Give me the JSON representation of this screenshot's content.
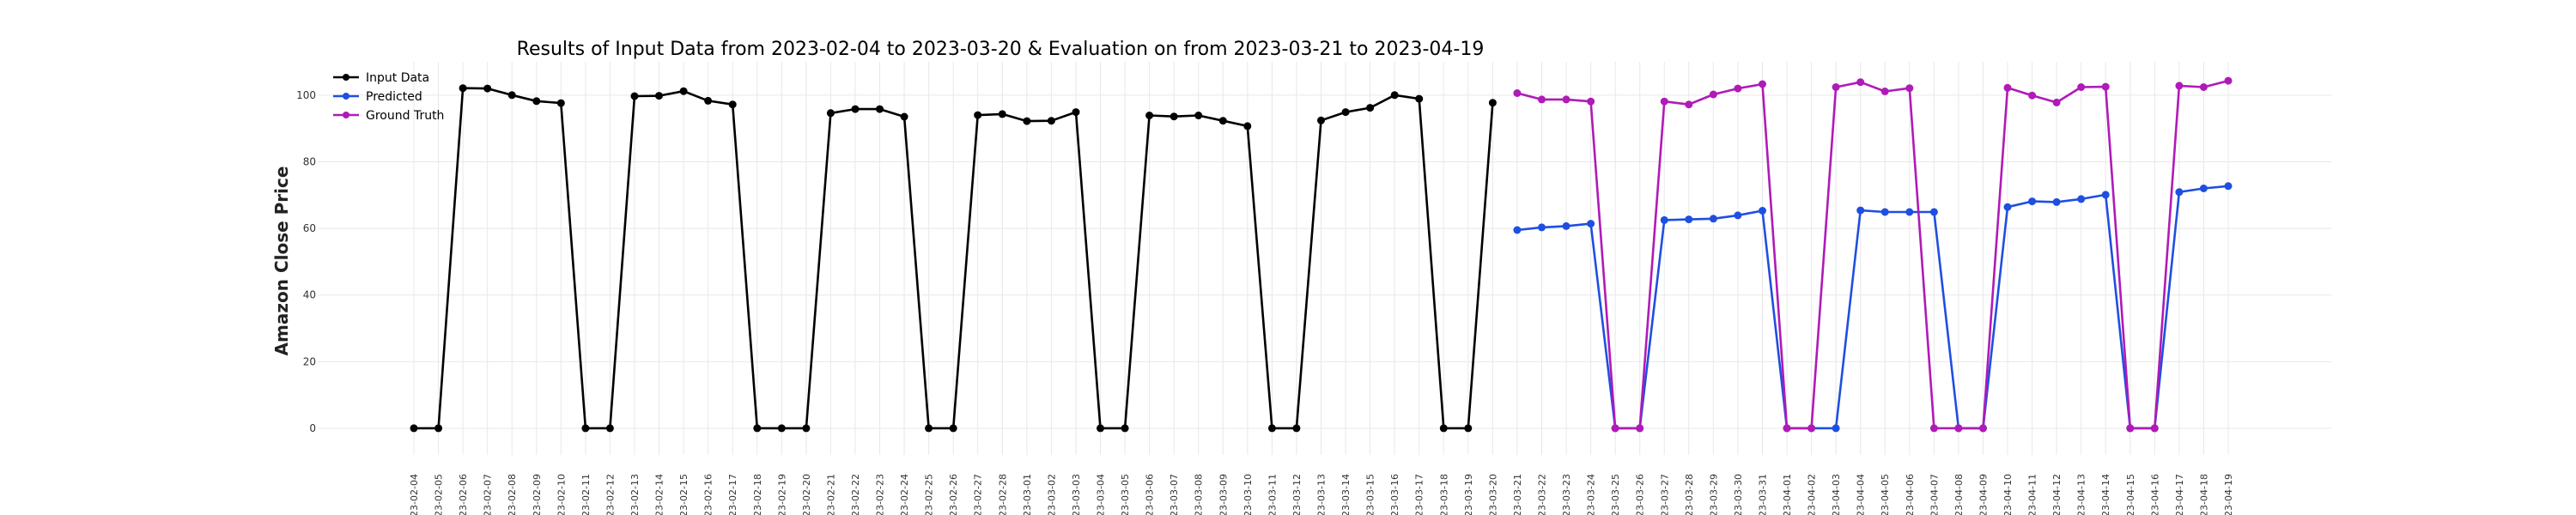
{
  "chart_data": {
    "type": "line",
    "title": "Results of Input Data from 2023-02-04 to 2023-03-20 & Evaluation on from 2023-03-21 to 2023-04-19",
    "xlabel": "",
    "ylabel": "Amazon Close Price",
    "ylim": [
      -8,
      110
    ],
    "yticks": [
      0,
      20,
      40,
      60,
      80,
      100
    ],
    "grid": true,
    "legend_position": "top-left",
    "x_dates": [
      "2023-02-04",
      "2023-02-05",
      "2023-02-06",
      "2023-02-07",
      "2023-02-08",
      "2023-02-09",
      "2023-02-10",
      "2023-02-11",
      "2023-02-12",
      "2023-02-13",
      "2023-02-14",
      "2023-02-15",
      "2023-02-16",
      "2023-02-17",
      "2023-02-18",
      "2023-02-19",
      "2023-02-20",
      "2023-02-21",
      "2023-02-22",
      "2023-02-23",
      "2023-02-24",
      "2023-02-25",
      "2023-02-26",
      "2023-02-27",
      "2023-02-28",
      "2023-03-01",
      "2023-03-02",
      "2023-03-03",
      "2023-03-04",
      "2023-03-05",
      "2023-03-06",
      "2023-03-07",
      "2023-03-08",
      "2023-03-09",
      "2023-03-10",
      "2023-03-11",
      "2023-03-12",
      "2023-03-13",
      "2023-03-14",
      "2023-03-15",
      "2023-03-16",
      "2023-03-17",
      "2023-03-18",
      "2023-03-19",
      "2023-03-20",
      "2023-03-21",
      "2023-03-22",
      "2023-03-23",
      "2023-03-24",
      "2023-03-25",
      "2023-03-26",
      "2023-03-27",
      "2023-03-28",
      "2023-03-29",
      "2023-03-30",
      "2023-03-31",
      "2023-04-01",
      "2023-04-02",
      "2023-04-03",
      "2023-04-04",
      "2023-04-05",
      "2023-04-06",
      "2023-04-07",
      "2023-04-08",
      "2023-04-09",
      "2023-04-10",
      "2023-04-11",
      "2023-04-12",
      "2023-04-13",
      "2023-04-14",
      "2023-04-15",
      "2023-04-16",
      "2023-04-17",
      "2023-04-18",
      "2023-04-19"
    ],
    "x_tick_labels": [
      "23-02-04",
      "23-02-05",
      "23-02-06",
      "23-02-07",
      "23-02-08",
      "23-02-09",
      "23-02-10",
      "23-02-11",
      "23-02-12",
      "23-02-13",
      "23-02-14",
      "23-02-15",
      "23-02-16",
      "23-02-17",
      "23-02-18",
      "23-02-19",
      "23-02-20",
      "23-02-21",
      "23-02-22",
      "23-02-23",
      "23-02-24",
      "23-02-25",
      "23-02-26",
      "23-02-27",
      "23-02-28",
      "23-03-01",
      "23-03-02",
      "23-03-03",
      "23-03-04",
      "23-03-05",
      "23-03-06",
      "23-03-07",
      "23-03-08",
      "23-03-09",
      "23-03-10",
      "23-03-11",
      "23-03-12",
      "23-03-13",
      "23-03-14",
      "23-03-15",
      "23-03-16",
      "23-03-17",
      "23-03-18",
      "23-03-19",
      "23-03-20",
      "23-03-21",
      "23-03-22",
      "23-03-23",
      "23-03-24",
      "23-03-25",
      "23-03-26",
      "23-03-27",
      "23-03-28",
      "23-03-29",
      "23-03-30",
      "23-03-31",
      "23-04-01",
      "23-04-02",
      "23-04-03",
      "23-04-04",
      "23-04-05",
      "23-04-06",
      "23-04-07",
      "23-04-08",
      "23-04-09",
      "23-04-10",
      "23-04-11",
      "23-04-12",
      "23-04-13",
      "23-04-14",
      "23-04-15",
      "23-04-16",
      "23-04-17",
      "23-04-18",
      "23-04-19"
    ],
    "series": [
      {
        "name": "Input Data",
        "color": "#000000",
        "x": [
          "2023-02-04",
          "2023-02-05",
          "2023-02-06",
          "2023-02-07",
          "2023-02-08",
          "2023-02-09",
          "2023-02-10",
          "2023-02-11",
          "2023-02-12",
          "2023-02-13",
          "2023-02-14",
          "2023-02-15",
          "2023-02-16",
          "2023-02-17",
          "2023-02-18",
          "2023-02-19",
          "2023-02-20",
          "2023-02-21",
          "2023-02-22",
          "2023-02-23",
          "2023-02-24",
          "2023-02-25",
          "2023-02-26",
          "2023-02-27",
          "2023-02-28",
          "2023-03-01",
          "2023-03-02",
          "2023-03-03",
          "2023-03-04",
          "2023-03-05",
          "2023-03-06",
          "2023-03-07",
          "2023-03-08",
          "2023-03-09",
          "2023-03-10",
          "2023-03-11",
          "2023-03-12",
          "2023-03-13",
          "2023-03-14",
          "2023-03-15",
          "2023-03-16",
          "2023-03-17",
          "2023-03-18",
          "2023-03-19",
          "2023-03-20"
        ],
        "values": [
          0,
          0,
          102.1,
          102.0,
          100.0,
          98.2,
          97.6,
          0,
          0,
          99.7,
          99.8,
          101.2,
          98.3,
          97.2,
          0,
          0,
          0,
          94.6,
          95.8,
          95.8,
          93.5,
          0,
          0,
          94.0,
          94.3,
          92.2,
          92.3,
          94.9,
          0,
          0,
          93.9,
          93.6,
          93.9,
          92.3,
          90.7,
          0,
          0,
          92.4,
          94.9,
          96.2,
          100.0,
          98.9,
          0,
          0,
          97.7
        ]
      },
      {
        "name": "Predicted",
        "color": "#1f4fe0",
        "x": [
          "2023-03-21",
          "2023-03-22",
          "2023-03-23",
          "2023-03-24",
          "2023-03-25",
          "2023-03-26",
          "2023-03-27",
          "2023-03-28",
          "2023-03-29",
          "2023-03-30",
          "2023-03-31",
          "2023-04-01",
          "2023-04-02",
          "2023-04-03",
          "2023-04-04",
          "2023-04-05",
          "2023-04-06",
          "2023-04-07",
          "2023-04-08",
          "2023-04-09",
          "2023-04-10",
          "2023-04-11",
          "2023-04-12",
          "2023-04-13",
          "2023-04-14",
          "2023-04-15",
          "2023-04-16",
          "2023-04-17",
          "2023-04-18",
          "2023-04-19"
        ],
        "values": [
          59.5,
          60.3,
          60.7,
          61.4,
          0,
          0,
          62.5,
          62.7,
          62.9,
          63.9,
          65.3,
          0,
          0,
          0,
          65.4,
          64.9,
          64.9,
          64.9,
          0,
          0,
          66.4,
          68.1,
          67.9,
          68.8,
          70.1,
          0,
          0,
          70.9,
          72.0,
          72.7
        ]
      },
      {
        "name": "Ground Truth",
        "color": "#b01ab8",
        "x": [
          "2023-03-21",
          "2023-03-22",
          "2023-03-23",
          "2023-03-24",
          "2023-03-25",
          "2023-03-26",
          "2023-03-27",
          "2023-03-28",
          "2023-03-29",
          "2023-03-30",
          "2023-03-31",
          "2023-04-01",
          "2023-04-02",
          "2023-04-03",
          "2023-04-04",
          "2023-04-05",
          "2023-04-06",
          "2023-04-07",
          "2023-04-08",
          "2023-04-09",
          "2023-04-10",
          "2023-04-11",
          "2023-04-12",
          "2023-04-13",
          "2023-04-14",
          "2023-04-15",
          "2023-04-16",
          "2023-04-17",
          "2023-04-18",
          "2023-04-19"
        ],
        "values": [
          100.6,
          98.7,
          98.7,
          98.1,
          0,
          0,
          98.1,
          97.2,
          100.2,
          102.0,
          103.3,
          0,
          0,
          102.4,
          103.9,
          101.1,
          102.1,
          0,
          0,
          0,
          102.2,
          99.9,
          97.8,
          102.4,
          102.5,
          0,
          0,
          102.8,
          102.4,
          104.3
        ]
      }
    ]
  }
}
